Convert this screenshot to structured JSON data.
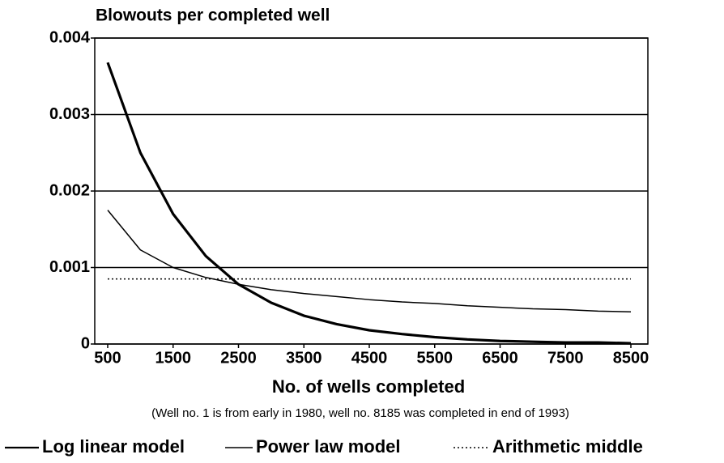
{
  "chart_data": {
    "type": "line",
    "title": "Blowouts per completed well",
    "xlabel": "No. of wells completed",
    "annotation": "(Well no. 1 is from early in 1980, well no. 8185 was completed in end of 1993)",
    "x": [
      500,
      1000,
      1500,
      2000,
      2500,
      3000,
      3500,
      4000,
      4500,
      5000,
      5500,
      6000,
      6500,
      7000,
      7500,
      8000,
      8500
    ],
    "series": [
      {
        "name": "Log linear model",
        "color": "#000000",
        "linewidth": 3.2,
        "linestyle": "solid",
        "values": [
          0.00368,
          0.0025,
          0.0017,
          0.00115,
          0.00078,
          0.00054,
          0.00037,
          0.00026,
          0.00018,
          0.00013,
          9e-05,
          6e-05,
          4e-05,
          3e-05,
          2e-05,
          2e-05,
          1e-05
        ]
      },
      {
        "name": "Power law model",
        "color": "#000000",
        "linewidth": 1.5,
        "linestyle": "solid",
        "values": [
          0.00175,
          0.00123,
          0.001,
          0.00087,
          0.00078,
          0.00071,
          0.00066,
          0.00062,
          0.00058,
          0.00055,
          0.00053,
          0.0005,
          0.00048,
          0.00046,
          0.00045,
          0.00043,
          0.00042
        ]
      },
      {
        "name": "Arithmetic middle",
        "color": "#000000",
        "linewidth": 1.5,
        "linestyle": "dotted",
        "values": [
          0.00085,
          0.00085,
          0.00085,
          0.00085,
          0.00085,
          0.00085,
          0.00085,
          0.00085,
          0.00085,
          0.00085,
          0.00085,
          0.00085,
          0.00085,
          0.00085,
          0.00085,
          0.00085,
          0.00085
        ]
      }
    ],
    "xlim": [
      302,
      8760
    ],
    "xticks": [
      500,
      1500,
      2500,
      3500,
      4500,
      5500,
      6500,
      7500,
      8500
    ],
    "ylim": [
      0,
      0.004
    ],
    "yticks": [
      0,
      0.001,
      0.002,
      0.003,
      0.004
    ],
    "grid": true,
    "legend": "bottom"
  }
}
